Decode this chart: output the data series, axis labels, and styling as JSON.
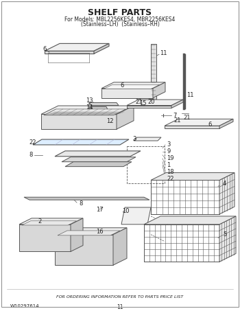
{
  "title": "SHELF PARTS",
  "subtitle_line1": "For Models: MBL2256KES4, MBR2256KES4",
  "subtitle_line2": "(Stainless–LH)  (Stainless–RH)",
  "footer_left": "W10297614",
  "footer_center": "FOR ORDERING INFORMATION REFER TO PARTS PRICE LIST",
  "footer_page": "11",
  "bg_color": "#ffffff",
  "lc": "#555555",
  "tc": "#222222"
}
